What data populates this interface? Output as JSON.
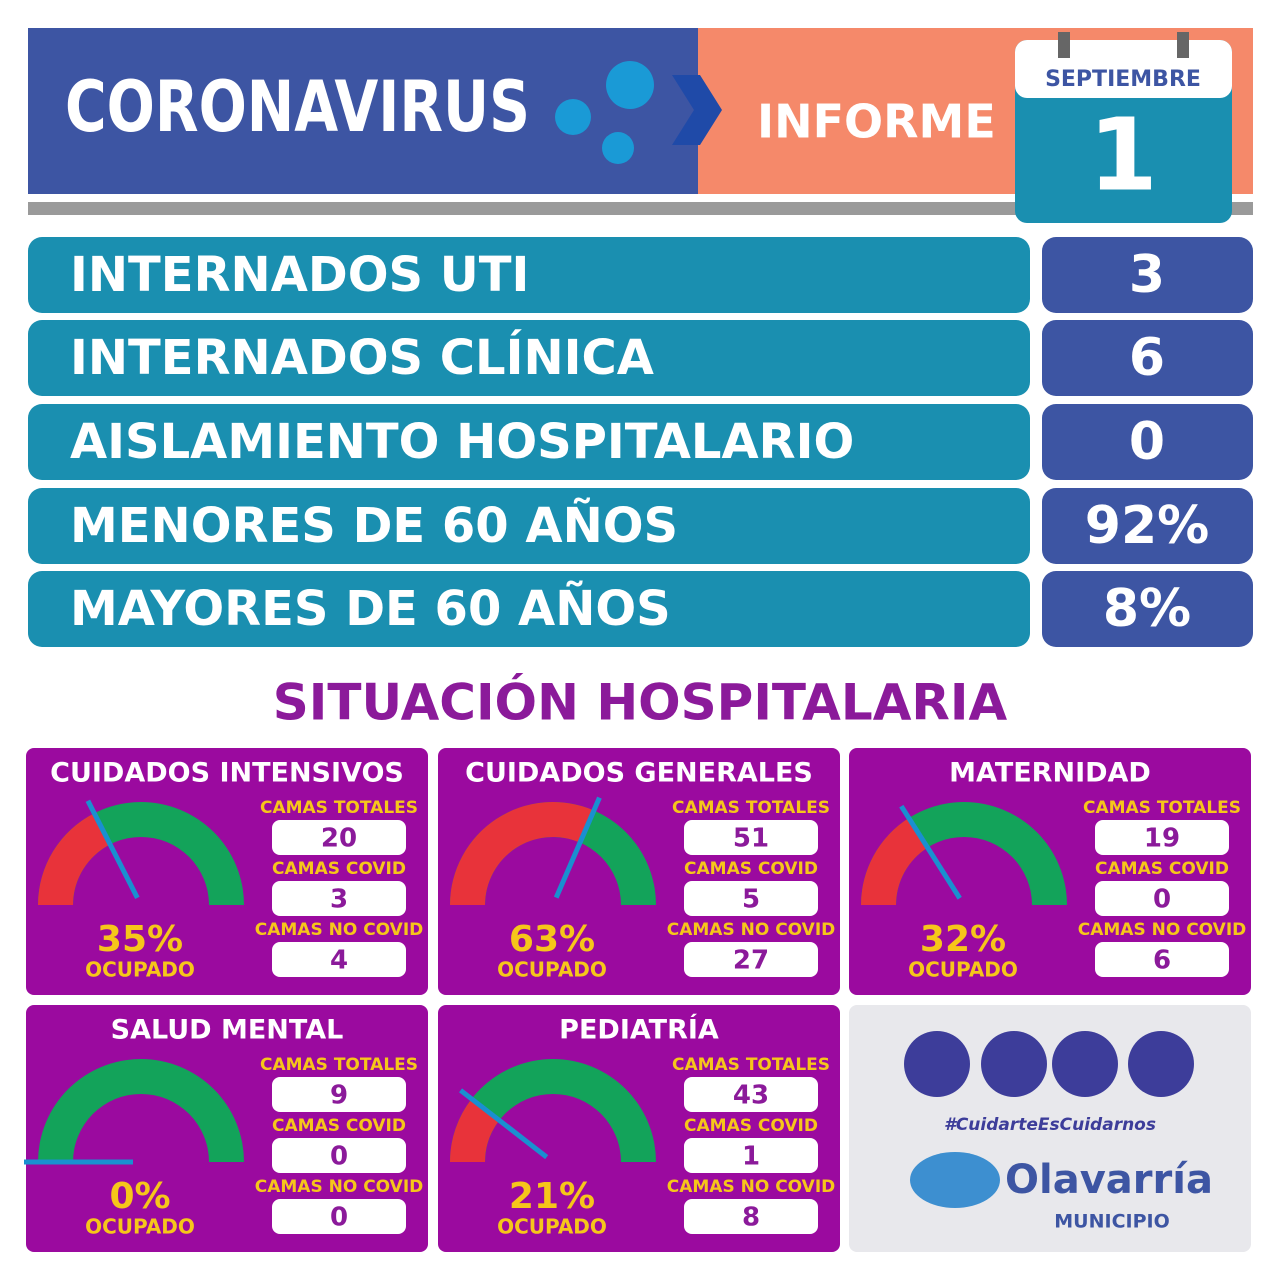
{
  "header": {
    "title": "CORONAVIRUS",
    "report": "INFORME",
    "month": "SEPTIEMBRE",
    "day": "1"
  },
  "stats": [
    {
      "label": "INTERNADOS UTI",
      "value": "3"
    },
    {
      "label": "INTERNADOS CLÍNICA",
      "value": "6"
    },
    {
      "label": "AISLAMIENTO HOSPITALARIO",
      "value": "0"
    },
    {
      "label": "MENORES DE 60 AÑOS",
      "value": "92%"
    },
    {
      "label": "MAYORES DE 60 AÑOS",
      "value": "8%"
    }
  ],
  "section_title": "SITUACIÓN HOSPITALARIA",
  "units": [
    {
      "name": "CUIDADOS INTENSIVOS",
      "occupancy": {
        "value": 35,
        "label": "35%"
      },
      "occupancy_label": "OCUPADO",
      "fields": [
        {
          "label": "CAMAS TOTALES",
          "value": "20"
        },
        {
          "label": "CAMAS COVID",
          "value": "3"
        },
        {
          "label": "CAMAS NO COVID",
          "value": "4"
        }
      ]
    },
    {
      "name": "CUIDADOS GENERALES",
      "occupancy": {
        "value": 63,
        "label": "63%"
      },
      "occupancy_label": "OCUPADO",
      "fields": [
        {
          "label": "CAMAS TOTALES",
          "value": "51"
        },
        {
          "label": "CAMAS COVID",
          "value": "5"
        },
        {
          "label": "CAMAS NO COVID",
          "value": "27"
        }
      ]
    },
    {
      "name": "MATERNIDAD",
      "occupancy": {
        "value": 32,
        "label": "32%"
      },
      "occupancy_label": "OCUPADO",
      "fields": [
        {
          "label": "CAMAS TOTALES",
          "value": "19"
        },
        {
          "label": "CAMAS COVID",
          "value": "0"
        },
        {
          "label": "CAMAS NO COVID",
          "value": "6"
        }
      ]
    },
    {
      "name": "SALUD MENTAL",
      "occupancy": {
        "value": 0,
        "label": "0%"
      },
      "occupancy_label": "OCUPADO",
      "fields": [
        {
          "label": "CAMAS TOTALES",
          "value": "9"
        },
        {
          "label": "CAMAS COVID",
          "value": "0"
        },
        {
          "label": "CAMAS NO COVID",
          "value": "0"
        }
      ]
    },
    {
      "name": "PEDIATRÍA",
      "occupancy": {
        "value": 21,
        "label": "21%"
      },
      "occupancy_label": "OCUPADO",
      "fields": [
        {
          "label": "CAMAS TOTALES",
          "value": "43"
        },
        {
          "label": "CAMAS COVID",
          "value": "1"
        },
        {
          "label": "CAMAS NO COVID",
          "value": "8"
        }
      ]
    }
  ],
  "footer": {
    "hashtag": "#CuidarteEsCuidarnos",
    "brand": "Olavarría",
    "subbrand": "MUNICIPIO"
  }
}
